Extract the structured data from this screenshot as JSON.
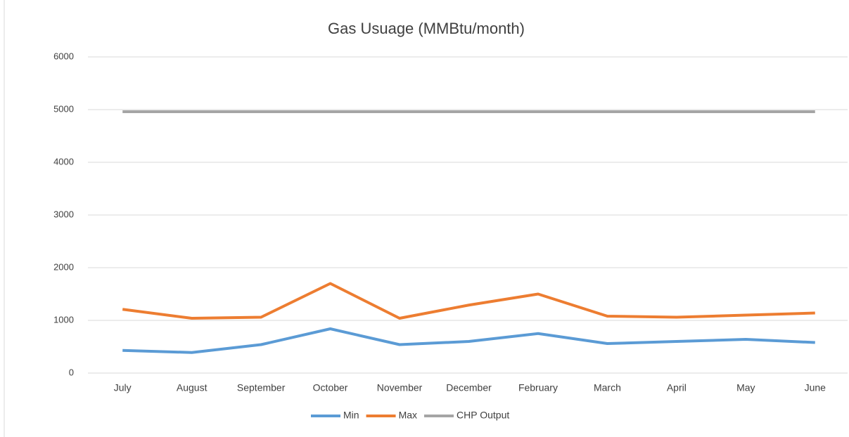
{
  "chart_data": {
    "type": "line",
    "title": "Gas Usuage (MMBtu/month)",
    "categories": [
      "July",
      "August",
      "September",
      "October",
      "November",
      "December",
      "February",
      "March",
      "April",
      "May",
      "June"
    ],
    "series": [
      {
        "name": "Min",
        "color": "#5b9bd5",
        "values": [
          430,
          390,
          540,
          840,
          540,
          600,
          750,
          560,
          600,
          640,
          580
        ]
      },
      {
        "name": "Max",
        "color": "#ed7d31",
        "values": [
          1210,
          1040,
          1060,
          1700,
          1040,
          1290,
          1500,
          1080,
          1060,
          1100,
          1140
        ]
      },
      {
        "name": "CHP Output",
        "color": "#a5a5a5",
        "values": [
          4960,
          4960,
          4960,
          4960,
          4960,
          4960,
          4960,
          4960,
          4960,
          4960,
          4960
        ]
      }
    ],
    "ylim": [
      0,
      6000
    ],
    "yticks": [
      0,
      1000,
      2000,
      3000,
      4000,
      5000,
      6000
    ],
    "grid": true,
    "legend": "bottom"
  }
}
